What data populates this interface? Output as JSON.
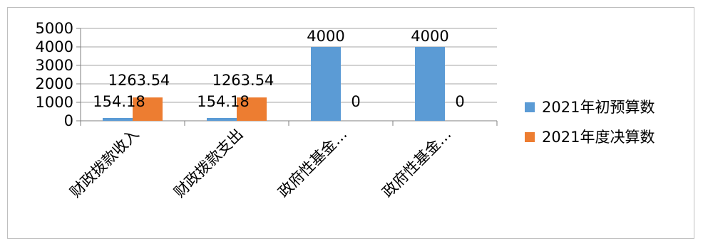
{
  "chart_data": {
    "type": "bar",
    "categories": [
      "财政拨款收入",
      "财政拨款支出",
      "政府性基金…",
      "政府性基金…"
    ],
    "series": [
      {
        "name": "2021年初预算数",
        "values": [
          154.18,
          154.18,
          4000,
          4000
        ],
        "color": "#5b9bd5"
      },
      {
        "name": "2021年度决算数",
        "values": [
          1263.54,
          1263.54,
          0,
          0
        ],
        "color": "#ed7d31"
      }
    ],
    "data_labels": [
      [
        "154.18",
        "154.18",
        "4000",
        "4000"
      ],
      [
        "1263.54",
        "1263.54",
        "0",
        "0"
      ]
    ],
    "yticks": [
      "0",
      "1000",
      "2000",
      "3000",
      "4000",
      "5000"
    ],
    "ylim": [
      0,
      5000
    ],
    "grid": true,
    "legend_position": "right"
  }
}
